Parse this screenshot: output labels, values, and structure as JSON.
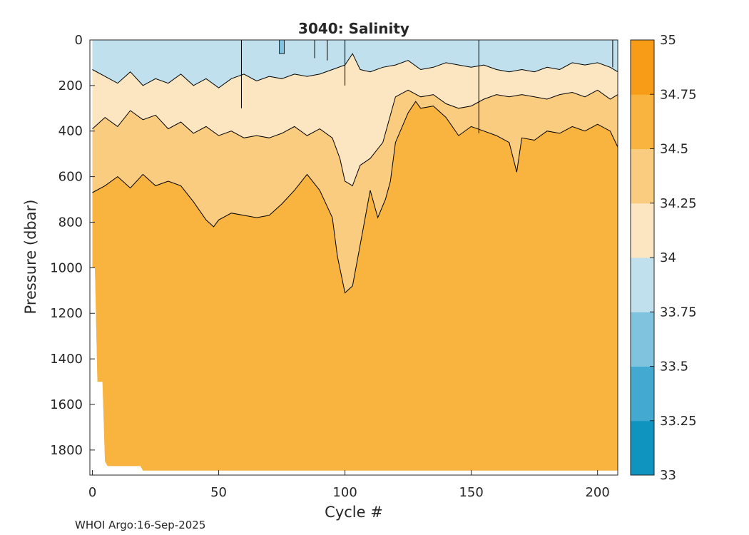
{
  "chart_data": {
    "type": "filled-contour",
    "title": "3040:  Salinity",
    "xlabel": "Cycle #",
    "ylabel": "Pressure (dbar)",
    "xlim": [
      -1,
      208
    ],
    "ylim": [
      1910,
      0
    ],
    "xticks": [
      0,
      50,
      100,
      150,
      200
    ],
    "yticks": [
      0,
      200,
      400,
      600,
      800,
      1000,
      1200,
      1400,
      1600,
      1800
    ],
    "colorbar": {
      "levels": [
        33,
        33.25,
        33.5,
        33.75,
        34,
        34.25,
        34.5,
        34.75,
        35
      ],
      "tick_labels": [
        "33",
        "33.25",
        "33.5",
        "33.75",
        "34",
        "34.25",
        "34.5",
        "34.75",
        "35"
      ],
      "colors": [
        "#0f94c0",
        "#43a9d0",
        "#80c3df",
        "#bfe0ec",
        "#fbe6c1",
        "#f9cc80",
        "#f9b33f",
        "#f89c17"
      ]
    },
    "layers": [
      {
        "name": "salinity 33.75-34.0",
        "color": "#bfe0ec",
        "boundary": [
          [
            0,
            0
          ],
          [
            208,
            0
          ],
          [
            208,
            1910
          ],
          [
            0,
            1910
          ]
        ],
        "max_depth": [
          [
            0,
            0
          ],
          [
            208,
            0
          ]
        ]
      },
      {
        "name": "salinity 34.0-34.25 (upper contour)",
        "color": "#fbe6c1",
        "top_depth": [
          [
            0,
            130
          ],
          [
            5,
            160
          ],
          [
            10,
            190
          ],
          [
            15,
            140
          ],
          [
            20,
            200
          ],
          [
            25,
            170
          ],
          [
            30,
            190
          ],
          [
            35,
            150
          ],
          [
            40,
            200
          ],
          [
            45,
            170
          ],
          [
            50,
            210
          ],
          [
            55,
            170
          ],
          [
            60,
            150
          ],
          [
            65,
            180
          ],
          [
            70,
            160
          ],
          [
            75,
            170
          ],
          [
            80,
            150
          ],
          [
            85,
            160
          ],
          [
            90,
            150
          ],
          [
            95,
            130
          ],
          [
            100,
            110
          ],
          [
            103,
            60
          ],
          [
            106,
            130
          ],
          [
            110,
            140
          ],
          [
            115,
            120
          ],
          [
            120,
            110
          ],
          [
            125,
            90
          ],
          [
            130,
            130
          ],
          [
            135,
            120
          ],
          [
            140,
            100
          ],
          [
            145,
            110
          ],
          [
            150,
            120
          ],
          [
            155,
            110
          ],
          [
            160,
            130
          ],
          [
            165,
            140
          ],
          [
            170,
            130
          ],
          [
            175,
            140
          ],
          [
            180,
            120
          ],
          [
            185,
            130
          ],
          [
            190,
            100
          ],
          [
            195,
            110
          ],
          [
            200,
            100
          ],
          [
            205,
            120
          ],
          [
            208,
            140
          ]
        ]
      },
      {
        "name": "salinity 34.25-34.5 (upper contour)",
        "color": "#f9cc80",
        "top_depth": [
          [
            0,
            390
          ],
          [
            5,
            340
          ],
          [
            10,
            380
          ],
          [
            15,
            310
          ],
          [
            20,
            350
          ],
          [
            25,
            330
          ],
          [
            30,
            390
          ],
          [
            35,
            360
          ],
          [
            40,
            410
          ],
          [
            45,
            380
          ],
          [
            50,
            420
          ],
          [
            55,
            400
          ],
          [
            60,
            430
          ],
          [
            65,
            420
          ],
          [
            70,
            430
          ],
          [
            75,
            410
          ],
          [
            80,
            380
          ],
          [
            85,
            420
          ],
          [
            90,
            390
          ],
          [
            95,
            430
          ],
          [
            98,
            520
          ],
          [
            100,
            620
          ],
          [
            103,
            640
          ],
          [
            106,
            550
          ],
          [
            110,
            520
          ],
          [
            115,
            450
          ],
          [
            118,
            330
          ],
          [
            120,
            250
          ],
          [
            125,
            220
          ],
          [
            130,
            250
          ],
          [
            135,
            240
          ],
          [
            140,
            280
          ],
          [
            145,
            300
          ],
          [
            150,
            290
          ],
          [
            155,
            260
          ],
          [
            160,
            240
          ],
          [
            165,
            250
          ],
          [
            170,
            240
          ],
          [
            175,
            250
          ],
          [
            180,
            260
          ],
          [
            185,
            240
          ],
          [
            190,
            230
          ],
          [
            195,
            250
          ],
          [
            200,
            220
          ],
          [
            205,
            260
          ],
          [
            208,
            240
          ]
        ]
      },
      {
        "name": "salinity 34.5-34.75 (upper contour)",
        "color": "#f9b33f",
        "top_depth": [
          [
            0,
            670
          ],
          [
            5,
            640
          ],
          [
            10,
            600
          ],
          [
            15,
            650
          ],
          [
            20,
            590
          ],
          [
            25,
            640
          ],
          [
            30,
            620
          ],
          [
            35,
            640
          ],
          [
            40,
            710
          ],
          [
            45,
            790
          ],
          [
            48,
            820
          ],
          [
            50,
            790
          ],
          [
            55,
            760
          ],
          [
            60,
            770
          ],
          [
            65,
            780
          ],
          [
            70,
            770
          ],
          [
            75,
            720
          ],
          [
            80,
            660
          ],
          [
            85,
            590
          ],
          [
            90,
            660
          ],
          [
            95,
            780
          ],
          [
            97,
            950
          ],
          [
            100,
            1110
          ],
          [
            103,
            1080
          ],
          [
            106,
            900
          ],
          [
            110,
            660
          ],
          [
            113,
            780
          ],
          [
            116,
            700
          ],
          [
            118,
            620
          ],
          [
            120,
            450
          ],
          [
            125,
            320
          ],
          [
            128,
            270
          ],
          [
            130,
            300
          ],
          [
            135,
            290
          ],
          [
            140,
            340
          ],
          [
            145,
            420
          ],
          [
            150,
            380
          ],
          [
            155,
            400
          ],
          [
            160,
            420
          ],
          [
            165,
            450
          ],
          [
            168,
            580
          ],
          [
            170,
            430
          ],
          [
            175,
            440
          ],
          [
            180,
            400
          ],
          [
            185,
            410
          ],
          [
            190,
            380
          ],
          [
            195,
            400
          ],
          [
            200,
            370
          ],
          [
            205,
            400
          ],
          [
            208,
            470
          ]
        ]
      },
      {
        "name": "salinity 33.5-33.75 patch",
        "color": "#80c3df",
        "cycles": [
          [
            74,
            0
          ],
          [
            76,
            0
          ],
          [
            76,
            60
          ],
          [
            74,
            60
          ]
        ]
      }
    ]
  },
  "footer": "WHOI Argo:16-Sep-2025"
}
